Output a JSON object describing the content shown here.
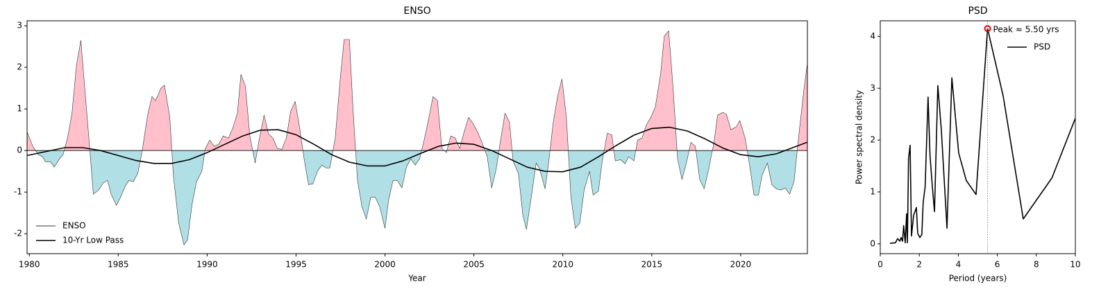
{
  "chart_data": [
    {
      "type": "line",
      "title": "ENSO",
      "xlabel": "Year",
      "xlim": [
        1979.875,
        2023.75
      ],
      "ylim": [
        -2.48,
        3.12
      ],
      "xticks": [
        1980,
        1985,
        1990,
        1995,
        2000,
        2005,
        2010,
        2015,
        2020
      ],
      "yticks": [
        -2,
        -1,
        0,
        1,
        2,
        3
      ],
      "legend": "lower left",
      "series": [
        {
          "name": "ENSO",
          "color": "#333333",
          "linewidth": 0.6,
          "fill_above": "#ffc0cb",
          "fill_below": "#b0e0e6",
          "x": [
            1979.875,
            1980.2,
            1980.5,
            1980.75,
            1980.9,
            1981.2,
            1981.4,
            1981.7,
            1981.9,
            1982.15,
            1982.4,
            1982.65,
            1982.9,
            1983.1,
            1983.35,
            1983.6,
            1983.9,
            1984.15,
            1984.4,
            1984.6,
            1984.9,
            1985.1,
            1985.4,
            1985.6,
            1985.85,
            1986.1,
            1986.35,
            1986.65,
            1986.9,
            1987.1,
            1987.4,
            1987.6,
            1987.9,
            1988.1,
            1988.4,
            1988.7,
            1988.9,
            1989.15,
            1989.4,
            1989.7,
            1989.9,
            1990.15,
            1990.4,
            1990.65,
            1990.9,
            1991.2,
            1991.45,
            1991.7,
            1991.9,
            1992.15,
            1992.4,
            1992.7,
            1992.9,
            1993.2,
            1993.45,
            1993.7,
            1993.95,
            1994.2,
            1994.45,
            1994.7,
            1994.95,
            1995.2,
            1995.45,
            1995.7,
            1995.95,
            1996.2,
            1996.45,
            1996.7,
            1996.9,
            1997.2,
            1997.5,
            1997.7,
            1998.0,
            1998.2,
            1998.45,
            1998.7,
            1998.95,
            1999.2,
            1999.45,
            1999.7,
            2000.0,
            2000.2,
            2000.45,
            2000.7,
            2000.95,
            2001.2,
            2001.45,
            2001.7,
            2001.95,
            2002.2,
            2002.45,
            2002.7,
            2002.95,
            2003.2,
            2003.45,
            2003.7,
            2003.95,
            2004.2,
            2004.45,
            2004.7,
            2004.95,
            2005.2,
            2005.45,
            2005.75,
            2006.0,
            2006.25,
            2006.5,
            2006.75,
            2007.0,
            2007.2,
            2007.5,
            2007.75,
            2007.95,
            2008.25,
            2008.5,
            2008.7,
            2009.0,
            2009.2,
            2009.45,
            2009.7,
            2009.95,
            2010.2,
            2010.45,
            2010.7,
            2010.95,
            2011.2,
            2011.5,
            2011.7,
            2012.0,
            2012.2,
            2012.5,
            2012.75,
            2012.95,
            2013.25,
            2013.5,
            2013.7,
            2014.0,
            2014.2,
            2014.45,
            2014.7,
            2014.95,
            2015.2,
            2015.5,
            2015.7,
            2015.95,
            2016.2,
            2016.45,
            2016.7,
            2016.95,
            2017.2,
            2017.45,
            2017.7,
            2017.95,
            2018.2,
            2018.5,
            2018.7,
            2019.0,
            2019.2,
            2019.45,
            2019.75,
            2019.95,
            2020.25,
            2020.5,
            2020.75,
            2021.0,
            2021.2,
            2021.5,
            2021.75,
            2022.0,
            2022.25,
            2022.5,
            2022.75,
            2023.0,
            2023.25,
            2023.55,
            2023.75
          ],
          "values": [
            0.45,
            0.1,
            -0.1,
            -0.15,
            -0.27,
            -0.27,
            -0.4,
            -0.2,
            -0.1,
            0.3,
            0.9,
            2.05,
            2.65,
            1.6,
            0.3,
            -1.05,
            -0.95,
            -0.78,
            -0.72,
            -1.05,
            -1.32,
            -1.15,
            -0.85,
            -0.72,
            -0.75,
            -0.55,
            0.0,
            0.85,
            1.3,
            1.2,
            1.5,
            1.57,
            0.8,
            -0.6,
            -1.75,
            -2.27,
            -2.15,
            -1.3,
            -0.75,
            -0.5,
            0.05,
            0.25,
            0.1,
            0.15,
            0.35,
            0.3,
            0.55,
            0.9,
            1.83,
            1.55,
            0.35,
            -0.3,
            0.2,
            0.85,
            0.4,
            0.3,
            0.05,
            0.03,
            0.3,
            0.95,
            1.18,
            0.55,
            -0.2,
            -0.82,
            -0.8,
            -0.5,
            -0.35,
            -0.42,
            -0.42,
            0.3,
            1.8,
            2.67,
            2.67,
            1.0,
            -0.7,
            -1.35,
            -1.65,
            -1.12,
            -1.12,
            -1.35,
            -1.87,
            -1.2,
            -0.72,
            -0.72,
            -0.9,
            -0.4,
            -0.2,
            -0.35,
            -0.2,
            0.25,
            0.75,
            1.3,
            1.2,
            0.05,
            -0.05,
            0.35,
            0.3,
            0.05,
            0.45,
            0.8,
            0.65,
            0.45,
            0.2,
            -0.15,
            -0.9,
            -0.45,
            0.25,
            0.9,
            0.68,
            -0.25,
            -0.55,
            -1.55,
            -1.9,
            -1.05,
            -0.3,
            -0.45,
            -0.92,
            -0.3,
            0.65,
            1.3,
            1.72,
            0.8,
            -1.1,
            -1.87,
            -1.75,
            -0.95,
            -0.5,
            -1.07,
            -0.98,
            -0.3,
            0.42,
            0.38,
            -0.25,
            -0.22,
            -0.32,
            -0.15,
            -0.25,
            0.25,
            0.3,
            0.62,
            0.8,
            1.05,
            1.85,
            2.75,
            2.88,
            1.5,
            -0.2,
            -0.7,
            -0.3,
            0.2,
            0.1,
            -0.7,
            -0.92,
            -0.45,
            0.2,
            0.85,
            0.92,
            0.87,
            0.5,
            0.57,
            0.72,
            0.3,
            -0.35,
            -1.07,
            -1.07,
            -0.6,
            -0.3,
            -0.82,
            -0.92,
            -0.95,
            -0.9,
            -1.05,
            -0.75,
            0.3,
            1.45,
            2.1
          ]
        },
        {
          "name": "10-Yr Low Pass",
          "color": "#000000",
          "linewidth": 1.6,
          "x": [
            1979.875,
            1981,
            1982,
            1983,
            1984,
            1985,
            1986,
            1987,
            1988,
            1989,
            1990,
            1991,
            1992,
            1993,
            1994,
            1995,
            1996,
            1997,
            1998,
            1999,
            2000,
            2001,
            2002,
            2003,
            2004,
            2005,
            2006,
            2007,
            2008,
            2009,
            2010,
            2011,
            2012,
            2013,
            2014,
            2015,
            2016,
            2017,
            2018,
            2019,
            2020,
            2021,
            2022,
            2023,
            2023.75
          ],
          "values": [
            -0.12,
            -0.02,
            0.07,
            0.07,
            0.0,
            -0.12,
            -0.24,
            -0.31,
            -0.31,
            -0.22,
            -0.05,
            0.15,
            0.35,
            0.49,
            0.5,
            0.38,
            0.15,
            -0.1,
            -0.28,
            -0.37,
            -0.37,
            -0.25,
            -0.07,
            0.1,
            0.18,
            0.15,
            0.0,
            -0.2,
            -0.4,
            -0.5,
            -0.51,
            -0.4,
            -0.15,
            0.12,
            0.37,
            0.53,
            0.56,
            0.47,
            0.28,
            0.06,
            -0.1,
            -0.15,
            -0.08,
            0.08,
            0.2
          ]
        }
      ]
    },
    {
      "type": "line",
      "title": "PSD",
      "xlabel": "Period (years)",
      "ylabel": "Power spectral density",
      "xlim": [
        0,
        10
      ],
      "ylim": [
        -0.19,
        4.3
      ],
      "xticks": [
        0,
        2,
        4,
        6,
        8,
        10
      ],
      "yticks": [
        0,
        1,
        2,
        3,
        4
      ],
      "legend": "upper right",
      "series": [
        {
          "name": "PSD",
          "color": "#000000",
          "linewidth": 1.6,
          "x": [
            0.5,
            0.78,
            0.89,
            1.0,
            1.07,
            1.14,
            1.2,
            1.28,
            1.35,
            1.39,
            1.45,
            1.53,
            1.6,
            1.71,
            1.85,
            1.92,
            2.03,
            2.13,
            2.2,
            2.3,
            2.45,
            2.55,
            2.67,
            2.78,
            2.95,
            3.13,
            3.42,
            3.67,
            4.02,
            4.41,
            4.91,
            5.5,
            6.3,
            7.33,
            8.8,
            10.0
          ],
          "values": [
            0.01,
            0.02,
            0.1,
            0.05,
            0.12,
            0.05,
            0.35,
            0.02,
            0.58,
            0.02,
            1.65,
            1.9,
            0.15,
            0.55,
            0.7,
            0.2,
            0.12,
            0.18,
            0.8,
            1.1,
            2.83,
            1.7,
            1.1,
            0.62,
            3.05,
            2.2,
            0.3,
            3.2,
            1.75,
            1.22,
            0.95,
            4.15,
            2.85,
            0.48,
            1.27,
            2.42
          ]
        }
      ],
      "peak": {
        "x": 5.5,
        "y": 4.15,
        "color": "#e00000",
        "label": "Peak ≈ 5.50 yrs"
      }
    }
  ]
}
